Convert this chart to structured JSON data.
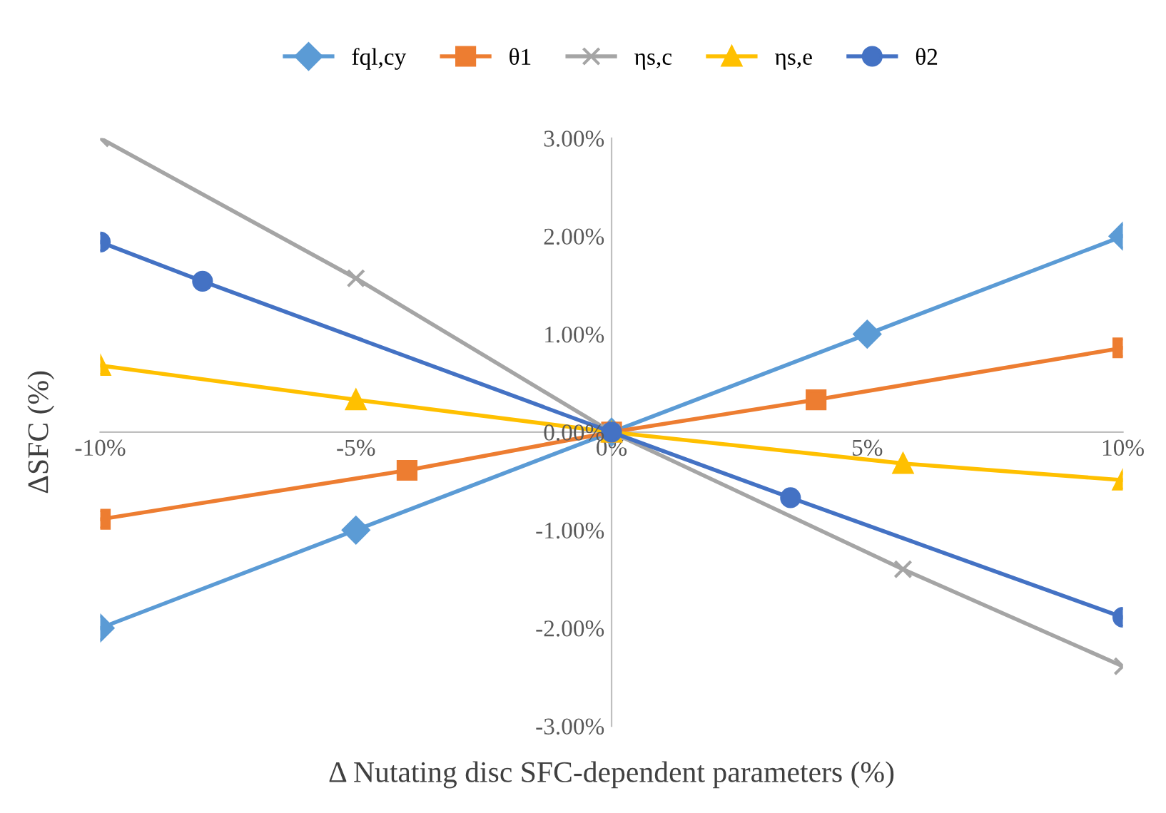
{
  "chart_data": {
    "type": "line",
    "xlabel": "Δ Nutating disc SFC-dependent parameters (%)",
    "ylabel": "ΔSFC (%)",
    "xlim": [
      -10,
      10
    ],
    "xticks": [
      {
        "value": -10,
        "label": "-10%"
      },
      {
        "value": -5,
        "label": "-5%"
      },
      {
        "value": 0,
        "label": "0%"
      },
      {
        "value": 5,
        "label": "5%"
      },
      {
        "value": 10,
        "label": "10%"
      }
    ],
    "ylim": [
      -3,
      3
    ],
    "yticks": [
      {
        "value": -3,
        "label": "-3.00%"
      },
      {
        "value": -2,
        "label": "-2.00%"
      },
      {
        "value": -1,
        "label": "-1.00%"
      },
      {
        "value": 0,
        "label": "0.00%"
      },
      {
        "value": 1,
        "label": "1.00%"
      },
      {
        "value": 2,
        "label": "2.00%"
      },
      {
        "value": 3,
        "label": "3.00%"
      }
    ],
    "grid": false,
    "legend": "top",
    "series": [
      {
        "name": "fql,cy",
        "color": "#5b9bd5",
        "marker": "diamond",
        "x": [
          -10,
          -5,
          0,
          5,
          10
        ],
        "values": [
          -2.0,
          -1.0,
          0,
          1.0,
          2.0
        ]
      },
      {
        "name": "θ1",
        "color": "#ed7d31",
        "marker": "square",
        "x": [
          -10,
          -4,
          0,
          4,
          10
        ],
        "values": [
          -0.89,
          -0.39,
          0,
          0.33,
          0.86
        ]
      },
      {
        "name": "ηs,c",
        "color": "#a5a5a5",
        "marker": "cross",
        "x": [
          -10,
          -5,
          0,
          5.7,
          10
        ],
        "values": [
          3.0,
          1.57,
          0,
          -1.4,
          -2.39
        ]
      },
      {
        "name": "ηs,e",
        "color": "#ffc000",
        "marker": "triangle",
        "x": [
          -10,
          -5,
          0,
          5.7,
          10
        ],
        "values": [
          0.68,
          0.33,
          0,
          -0.32,
          -0.49
        ]
      },
      {
        "name": "θ2",
        "color": "#4472c4",
        "marker": "circle",
        "x": [
          -10,
          -8,
          0,
          3.5,
          10
        ],
        "values": [
          1.94,
          1.54,
          0,
          -0.67,
          -1.89
        ]
      }
    ]
  }
}
